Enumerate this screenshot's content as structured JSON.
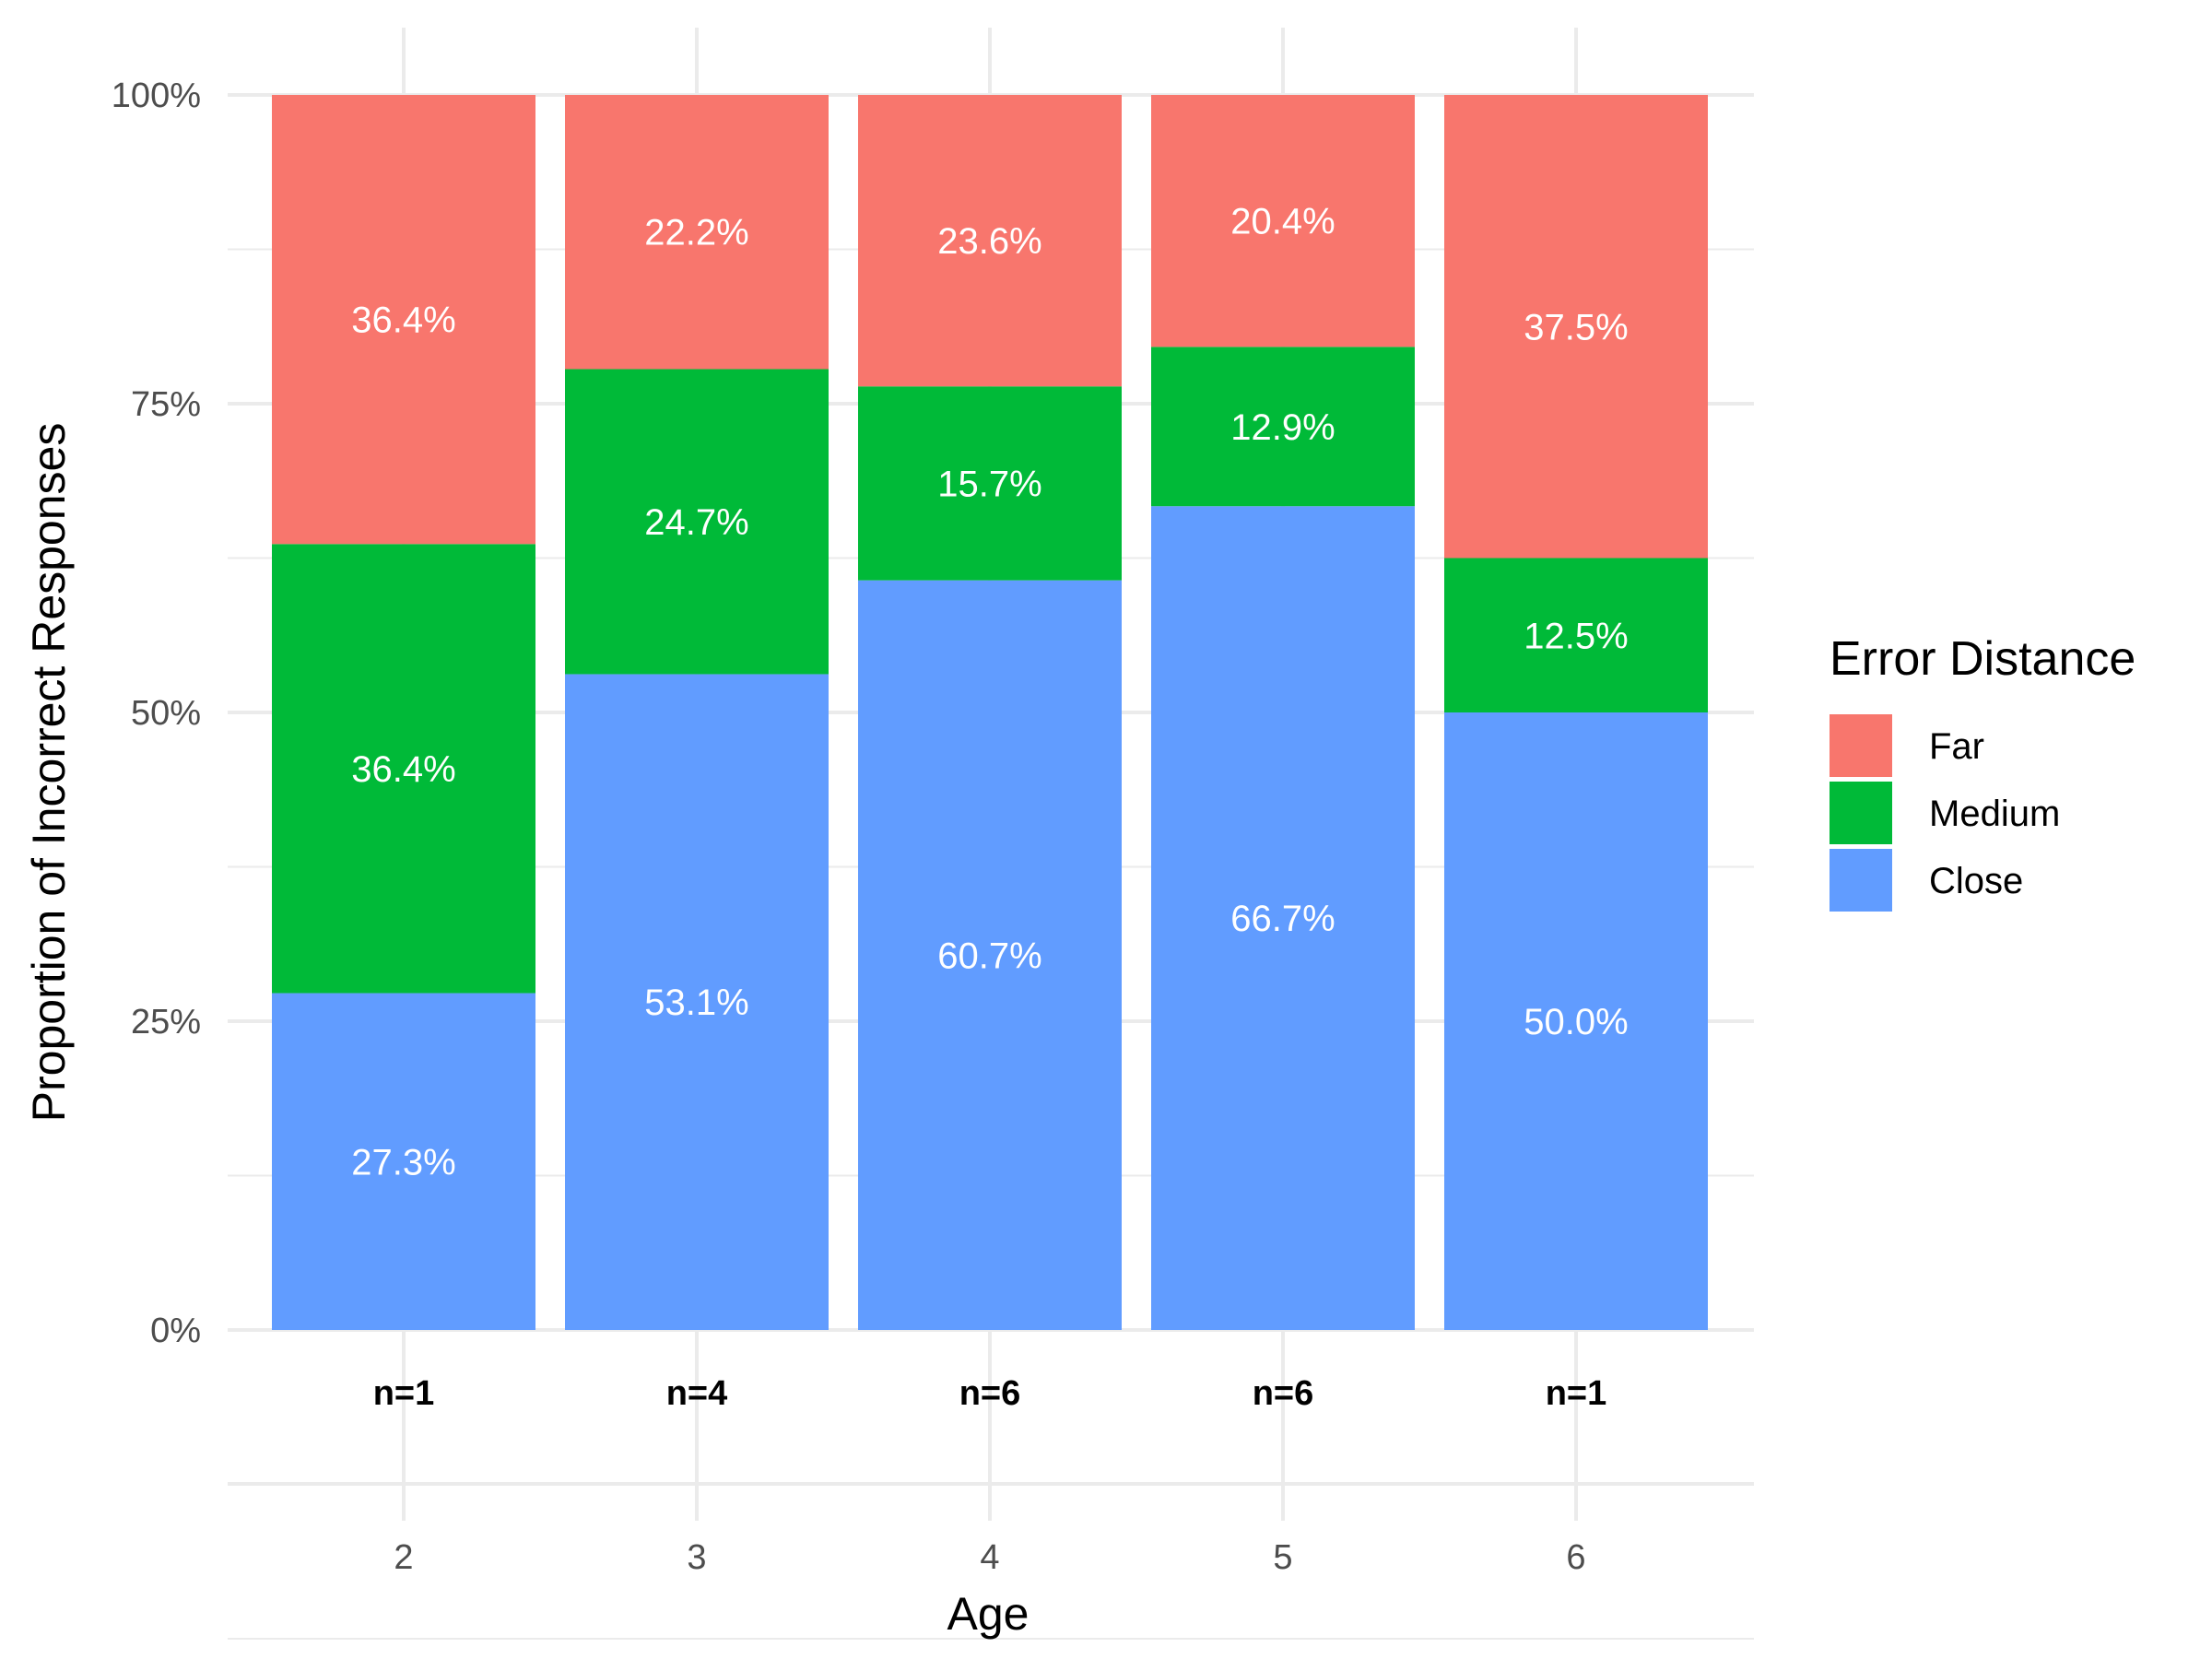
{
  "chart_data": {
    "type": "bar",
    "stacked": true,
    "xlabel": "Age",
    "ylabel": "Proportion of Incorrect Responses",
    "categories": [
      "2",
      "3",
      "4",
      "5",
      "6"
    ],
    "sample_sizes": [
      "n=1",
      "n=4",
      "n=6",
      "n=6",
      "n=1"
    ],
    "ylim": [
      0,
      1
    ],
    "y_ticks": [
      0,
      0.25,
      0.5,
      0.75,
      1.0
    ],
    "y_tick_labels": [
      "0%",
      "25%",
      "50%",
      "75%",
      "100%"
    ],
    "series": [
      {
        "name": "Close",
        "color": "#619CFF",
        "values": [
          0.273,
          0.531,
          0.607,
          0.667,
          0.5
        ],
        "labels": [
          "27.3%",
          "53.1%",
          "60.7%",
          "66.7%",
          "50.0%"
        ]
      },
      {
        "name": "Medium",
        "color": "#00BA38",
        "values": [
          0.364,
          0.247,
          0.157,
          0.129,
          0.125
        ],
        "labels": [
          "36.4%",
          "24.7%",
          "15.7%",
          "12.9%",
          "12.5%"
        ]
      },
      {
        "name": "Far",
        "color": "#F8766D",
        "values": [
          0.364,
          0.222,
          0.236,
          0.204,
          0.375
        ],
        "labels": [
          "36.4%",
          "22.2%",
          "23.6%",
          "20.4%",
          "37.5%"
        ]
      }
    ],
    "legend": {
      "title": "Error Distance",
      "position": "right",
      "items": [
        {
          "name": "Far",
          "color": "#F8766D"
        },
        {
          "name": "Medium",
          "color": "#00BA38"
        },
        {
          "name": "Close",
          "color": "#619CFF"
        }
      ]
    },
    "grid": true
  }
}
